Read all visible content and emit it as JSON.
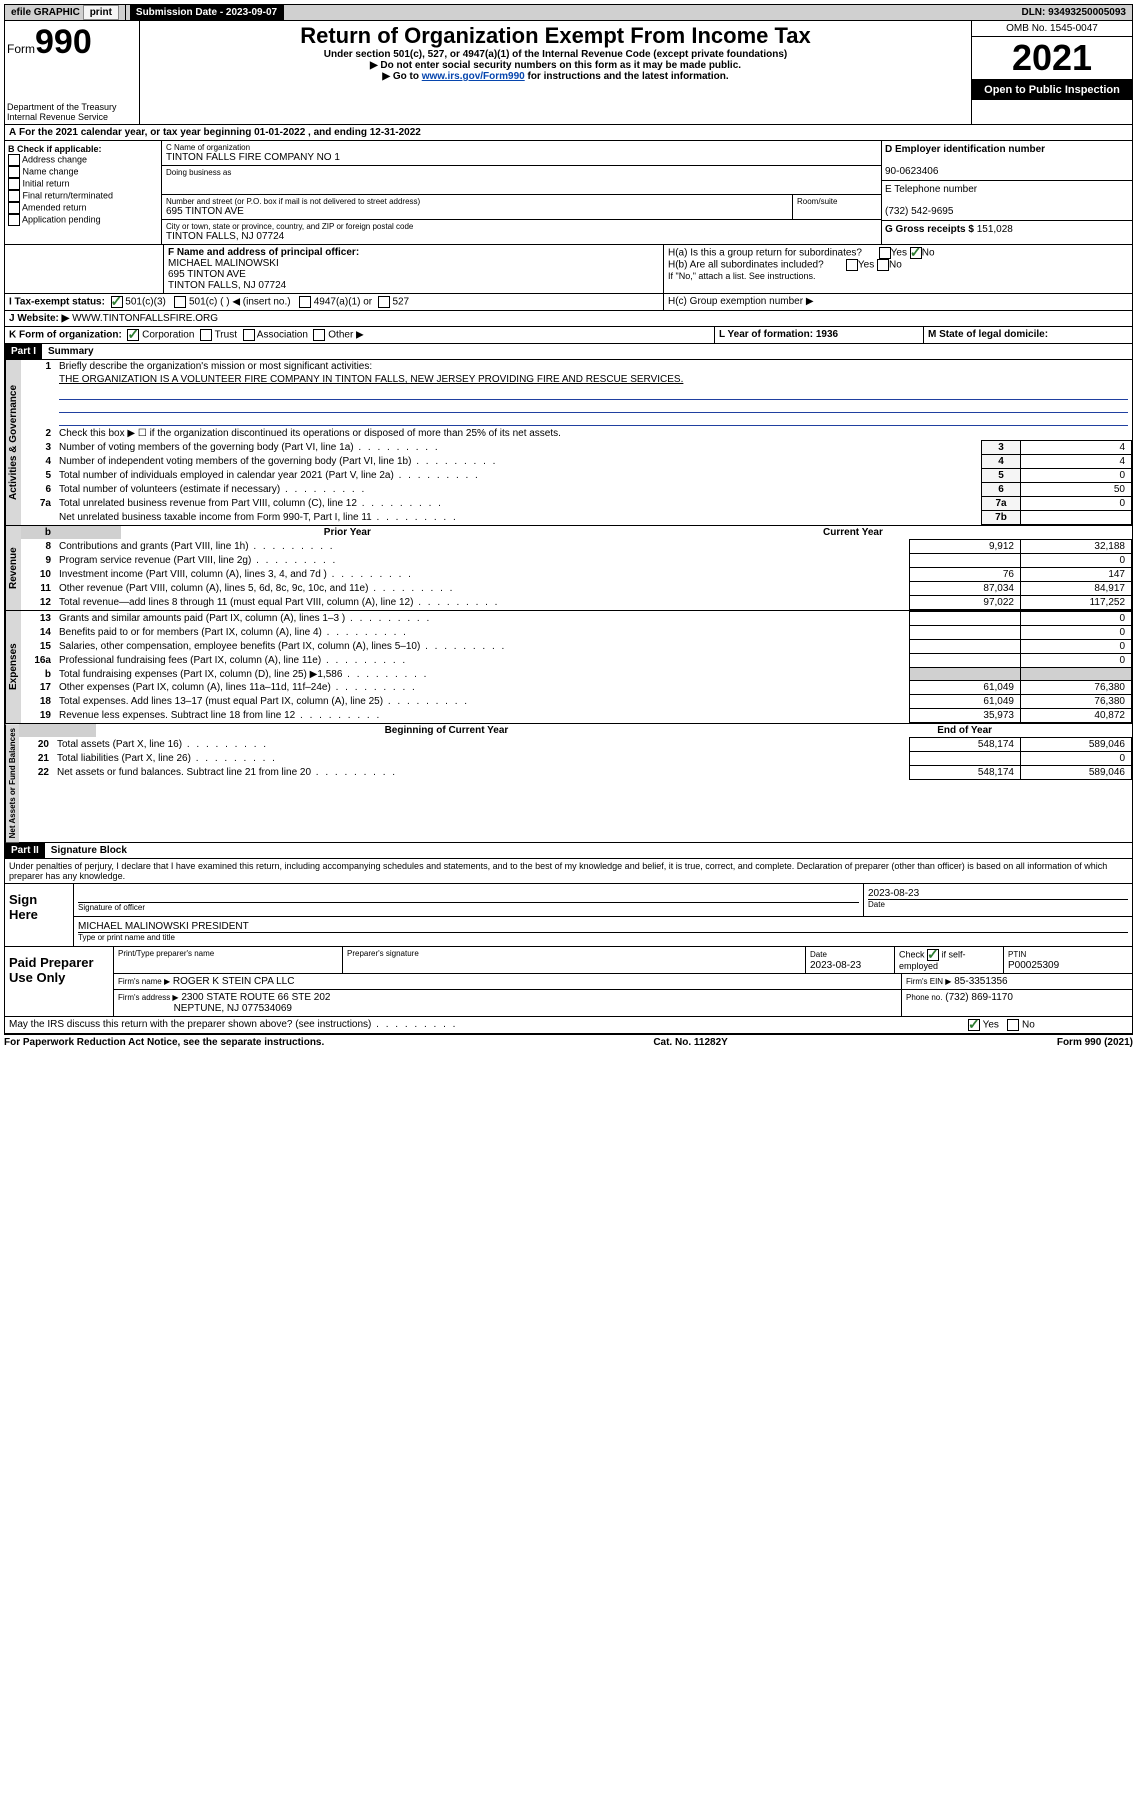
{
  "topbar": {
    "efile": "efile GRAPHIC",
    "print": "print",
    "sub_label": "Submission Date - 2023-09-07",
    "dln": "DLN: 93493250005093"
  },
  "header": {
    "form": "Form",
    "num": "990",
    "dept": "Department of the Treasury",
    "irs": "Internal Revenue Service",
    "title": "Return of Organization Exempt From Income Tax",
    "sub1": "Under section 501(c), 527, or 4947(a)(1) of the Internal Revenue Code (except private foundations)",
    "sub2": "▶ Do not enter social security numbers on this form as it may be made public.",
    "sub3_pre": "▶ Go to ",
    "sub3_link": "www.irs.gov/Form990",
    "sub3_post": " for instructions and the latest information.",
    "omb": "OMB No. 1545-0047",
    "year": "2021",
    "inspect": "Open to Public Inspection"
  },
  "lineA": "For the 2021 calendar year, or tax year beginning 01-01-2022 , and ending 12-31-2022",
  "boxB": {
    "title": "B Check if applicable:",
    "opts": [
      "Address change",
      "Name change",
      "Initial return",
      "Final return/terminated",
      "Amended return",
      "Application pending"
    ]
  },
  "boxC": {
    "label": "C Name of organization",
    "name": "TINTON FALLS FIRE COMPANY NO 1",
    "dba": "Doing business as",
    "addr_label": "Number and street (or P.O. box if mail is not delivered to street address)",
    "room": "Room/suite",
    "addr": "695 TINTON AVE",
    "city_label": "City or town, state or province, country, and ZIP or foreign postal code",
    "city": "TINTON FALLS, NJ  07724"
  },
  "boxD": {
    "label": "D Employer identification number",
    "val": "90-0623406"
  },
  "boxE": {
    "label": "E Telephone number",
    "val": "(732) 542-9695"
  },
  "boxG": {
    "label": "G Gross receipts $",
    "val": "151,028"
  },
  "boxF": {
    "label": "F Name and address of principal officer:",
    "name": "MICHAEL MALINOWSKI",
    "addr1": "695 TINTON AVE",
    "addr2": "TINTON FALLS, NJ  07724"
  },
  "boxH": {
    "a": "H(a)  Is this a group return for subordinates?",
    "b": "H(b)  Are all subordinates included?",
    "note": "If \"No,\" attach a list. See instructions.",
    "c": "H(c)  Group exemption number ▶"
  },
  "lineI": {
    "label": "I    Tax-exempt status:",
    "o1": "501(c)(3)",
    "o2": "501(c) (  ) ◀ (insert no.)",
    "o3": "4947(a)(1) or",
    "o4": "527"
  },
  "lineJ": {
    "label": "J    Website: ▶",
    "val": "WWW.TINTONFALLSFIRE.ORG"
  },
  "lineK": {
    "label": "K Form of organization:",
    "o1": "Corporation",
    "o2": "Trust",
    "o3": "Association",
    "o4": "Other ▶"
  },
  "lineL": {
    "label": "L Year of formation: 1936"
  },
  "lineM": {
    "label": "M State of legal domicile:"
  },
  "part1": {
    "header": "Part I",
    "title": "Summary",
    "l1": "Briefly describe the organization's mission or most significant activities:",
    "mission": "THE ORGANIZATION IS A VOLUNTEER FIRE COMPANY IN TINTON FALLS, NEW JERSEY PROVIDING FIRE AND RESCUE SERVICES.",
    "l2": "Check this box ▶ ☐  if the organization discontinued its operations or disposed of more than 25% of its net assets.",
    "rows_gov": [
      {
        "n": "3",
        "t": "Number of voting members of the governing body (Part VI, line 1a)",
        "box": "3",
        "v": "4"
      },
      {
        "n": "4",
        "t": "Number of independent voting members of the governing body (Part VI, line 1b)",
        "box": "4",
        "v": "4"
      },
      {
        "n": "5",
        "t": "Total number of individuals employed in calendar year 2021 (Part V, line 2a)",
        "box": "5",
        "v": "0"
      },
      {
        "n": "6",
        "t": "Total number of volunteers (estimate if necessary)",
        "box": "6",
        "v": "50"
      },
      {
        "n": "7a",
        "t": "Total unrelated business revenue from Part VIII, column (C), line 12",
        "box": "7a",
        "v": "0"
      },
      {
        "n": "",
        "t": "Net unrelated business taxable income from Form 990-T, Part I, line 11",
        "box": "7b",
        "v": ""
      }
    ],
    "col_prior": "Prior Year",
    "col_curr": "Current Year",
    "rows_rev": [
      {
        "n": "8",
        "t": "Contributions and grants (Part VIII, line 1h)",
        "p": "9,912",
        "c": "32,188"
      },
      {
        "n": "9",
        "t": "Program service revenue (Part VIII, line 2g)",
        "p": "",
        "c": "0"
      },
      {
        "n": "10",
        "t": "Investment income (Part VIII, column (A), lines 3, 4, and 7d )",
        "p": "76",
        "c": "147"
      },
      {
        "n": "11",
        "t": "Other revenue (Part VIII, column (A), lines 5, 6d, 8c, 9c, 10c, and 11e)",
        "p": "87,034",
        "c": "84,917"
      },
      {
        "n": "12",
        "t": "Total revenue—add lines 8 through 11 (must equal Part VIII, column (A), line 12)",
        "p": "97,022",
        "c": "117,252"
      }
    ],
    "rows_exp": [
      {
        "n": "13",
        "t": "Grants and similar amounts paid (Part IX, column (A), lines 1–3 )",
        "p": "",
        "c": "0"
      },
      {
        "n": "14",
        "t": "Benefits paid to or for members (Part IX, column (A), line 4)",
        "p": "",
        "c": "0"
      },
      {
        "n": "15",
        "t": "Salaries, other compensation, employee benefits (Part IX, column (A), lines 5–10)",
        "p": "",
        "c": "0"
      },
      {
        "n": "16a",
        "t": "Professional fundraising fees (Part IX, column (A), line 11e)",
        "p": "",
        "c": "0"
      },
      {
        "n": "b",
        "t": "Total fundraising expenses (Part IX, column (D), line 25) ▶1,586",
        "p": "shade",
        "c": "shade"
      },
      {
        "n": "17",
        "t": "Other expenses (Part IX, column (A), lines 11a–11d, 11f–24e)",
        "p": "61,049",
        "c": "76,380"
      },
      {
        "n": "18",
        "t": "Total expenses. Add lines 13–17 (must equal Part IX, column (A), line 25)",
        "p": "61,049",
        "c": "76,380"
      },
      {
        "n": "19",
        "t": "Revenue less expenses. Subtract line 18 from line 12",
        "p": "35,973",
        "c": "40,872"
      }
    ],
    "col_begin": "Beginning of Current Year",
    "col_end": "End of Year",
    "rows_net": [
      {
        "n": "20",
        "t": "Total assets (Part X, line 16)",
        "p": "548,174",
        "c": "589,046"
      },
      {
        "n": "21",
        "t": "Total liabilities (Part X, line 26)",
        "p": "",
        "c": "0"
      },
      {
        "n": "22",
        "t": "Net assets or fund balances. Subtract line 21 from line 20",
        "p": "548,174",
        "c": "589,046"
      }
    ],
    "tab_gov": "Activities & Governance",
    "tab_rev": "Revenue",
    "tab_exp": "Expenses",
    "tab_net": "Net Assets or Fund Balances"
  },
  "part2": {
    "header": "Part II",
    "title": "Signature Block",
    "decl": "Under penalties of perjury, I declare that I have examined this return, including accompanying schedules and statements, and to the best of my knowledge and belief, it is true, correct, and complete. Declaration of preparer (other than officer) is based on all information of which preparer has any knowledge.",
    "sign_here": "Sign Here",
    "sig_officer": "Signature of officer",
    "date_lbl": "Date",
    "date": "2023-08-23",
    "officer": "MICHAEL MALINOWSKI  PRESIDENT",
    "officer_lbl": "Type or print name and title",
    "paid": "Paid Preparer Use Only",
    "pt_name": "Print/Type preparer's name",
    "pt_sig": "Preparer's signature",
    "pt_date_lbl": "Date",
    "pt_date": "2023-08-23",
    "pt_check": "Check ☑ if self-employed",
    "ptin_lbl": "PTIN",
    "ptin": "P00025309",
    "firm_name_lbl": "Firm's name    ▶",
    "firm_name": "ROGER K STEIN CPA LLC",
    "firm_ein_lbl": "Firm's EIN ▶",
    "firm_ein": "85-3351356",
    "firm_addr_lbl": "Firm's address ▶",
    "firm_addr1": "2300 STATE ROUTE 66 STE 202",
    "firm_addr2": "NEPTUNE, NJ  077534069",
    "phone_lbl": "Phone no.",
    "phone": "(732) 869-1170",
    "discuss": "May the IRS discuss this return with the preparer shown above? (see instructions)"
  },
  "footer": {
    "left": "For Paperwork Reduction Act Notice, see the separate instructions.",
    "mid": "Cat. No. 11282Y",
    "right": "Form 990 (2021)"
  }
}
